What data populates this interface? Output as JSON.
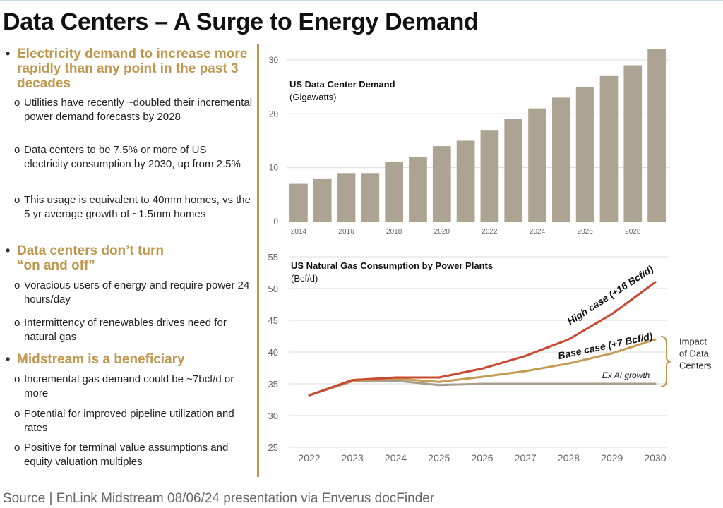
{
  "title": "Data Centers – A Surge to Energy Demand",
  "source": "Source | EnLink Midstream 08/06/24 presentation via Enverus docFinder",
  "bullets": [
    {
      "heading": "Electricity demand to increase more rapidly than any point in the past 3 decades",
      "subs": [
        "Utilities have recently ~doubled their incremental power demand forecasts by 2028",
        "Data centers to be 7.5% or more of US electricity consumption by 2030, up from 2.5%",
        "This usage is equivalent to 40mm homes, vs the 5 yr average growth of ~1.5mm homes"
      ]
    },
    {
      "heading": "Data centers don’t turn “on and off”",
      "subs": [
        "Voracious users of energy and require power 24 hours/day",
        "Intermittency of renewables drives need for natural gas"
      ]
    },
    {
      "heading": "Midstream is a beneficiary",
      "subs": [
        "Incremental gas demand could be ~7bcf/d or more",
        "Potential for improved pipeline utilization and rates",
        "Positive for terminal value assumptions and equity valuation multiples"
      ]
    }
  ],
  "bullet_glyph": "•",
  "sub_glyph": "o",
  "colors": {
    "accent": "#c1974f",
    "bar": "#ada392",
    "high": "#c9472f",
    "base": "#c49a52",
    "exai": "#a89d8a"
  },
  "chart_data": [
    {
      "type": "bar",
      "title": "US Data Center Demand",
      "unit": "(Gigawatts)",
      "categories": [
        "2014",
        "2015",
        "2016",
        "2017",
        "2018",
        "2019",
        "2020",
        "2021",
        "2022",
        "2023",
        "2024",
        "2025",
        "2026",
        "2027",
        "2028",
        "2029"
      ],
      "values": [
        7,
        8,
        9,
        9,
        11,
        12,
        14,
        15,
        17,
        19,
        21,
        23,
        25,
        27,
        29,
        32
      ],
      "xtick_labels": [
        "2014",
        "2016",
        "2018",
        "2020",
        "2022",
        "2024",
        "2026",
        "2028"
      ],
      "yticks": [
        0,
        10,
        20,
        30
      ],
      "ylim": [
        0,
        33
      ],
      "grid": true
    },
    {
      "type": "line",
      "title": "US Natural Gas Consumption by Power Plants",
      "unit": "(Bcf/d)",
      "x": [
        "2022",
        "2023",
        "2024",
        "2025",
        "2026",
        "2027",
        "2028",
        "2029",
        "2030"
      ],
      "yticks": [
        25,
        30,
        35,
        40,
        45,
        50,
        55
      ],
      "ylim": [
        25,
        55
      ],
      "grid": true,
      "series": [
        {
          "name": "High case (+16 Bcf/d)",
          "color": "#c9472f",
          "values": [
            33.2,
            35.6,
            36.0,
            36.0,
            37.4,
            39.4,
            42.0,
            46.0,
            51.0
          ]
        },
        {
          "name": "Base case (+7 Bcf/d)",
          "color": "#c49a52",
          "values": [
            33.2,
            35.5,
            35.8,
            35.3,
            36.1,
            37.0,
            38.2,
            39.8,
            42.0
          ]
        },
        {
          "name": "Ex AI growth",
          "color": "#a89d8a",
          "values": [
            33.2,
            35.4,
            35.5,
            34.8,
            35.0,
            35.0,
            35.0,
            35.0,
            35.0
          ]
        }
      ],
      "annotation": "Impact of Data Centers"
    }
  ]
}
